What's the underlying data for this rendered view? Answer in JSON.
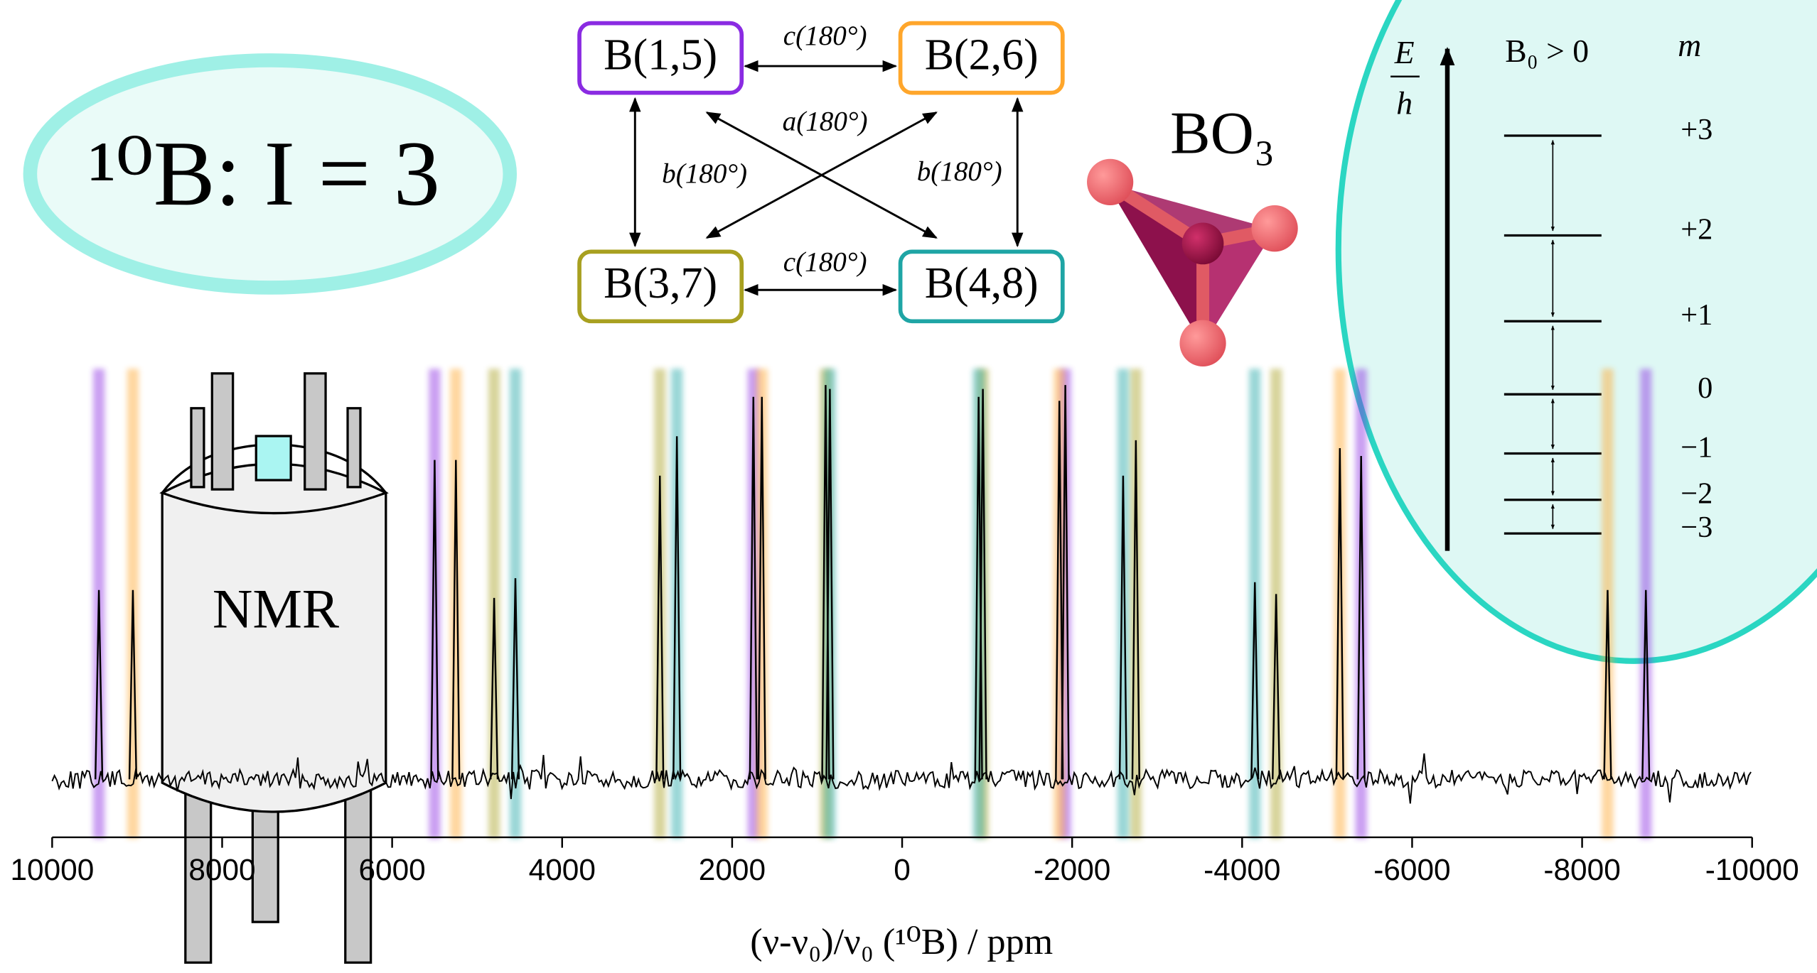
{
  "chart_data": {
    "type": "spectrum",
    "xlabel": "(ν-ν₀)/ν₀ (¹⁰B) / ppm",
    "xlim": [
      10000,
      -10000
    ],
    "xticks": [
      10000,
      8000,
      6000,
      4000,
      2000,
      0,
      -2000,
      -4000,
      -6000,
      -8000,
      -10000
    ],
    "series": [
      {
        "name": "B(1,5)",
        "color": "#8a2be2",
        "x": [
          9450,
          5500,
          1750,
          -1920,
          -5400,
          -8750
        ],
        "values": [
          0.48,
          0.81,
          0.97,
          1.0,
          0.82,
          0.48
        ]
      },
      {
        "name": "B(2,6)",
        "color": "#ffa62b",
        "x": [
          9050,
          5250,
          1650,
          -1850,
          -5150,
          -8300
        ],
        "values": [
          0.48,
          0.81,
          0.97,
          0.96,
          0.84,
          0.48
        ]
      },
      {
        "name": "B(3,7)",
        "color": "#a8a020",
        "x": [
          4800,
          2850,
          900,
          -950,
          -2750,
          -4400
        ],
        "values": [
          0.46,
          0.77,
          1.0,
          0.99,
          0.86,
          0.47
        ]
      },
      {
        "name": "B(4,8)",
        "color": "#1fa5a5",
        "x": [
          4550,
          2650,
          850,
          -900,
          -2600,
          -4150
        ],
        "values": [
          0.51,
          0.87,
          0.99,
          0.97,
          0.77,
          0.5
        ]
      }
    ]
  },
  "diagram": {
    "isotope": "¹⁰B: I = 3",
    "edges": {
      "top": "c(180°)",
      "bottom": "c(180°)",
      "left": "b(180°)",
      "right": "b(180°)",
      "diagonal": "a(180°)"
    },
    "molecule": "BO₃",
    "instrument": "NMR",
    "energy": {
      "numerator": "E",
      "denominator": "h",
      "field": "B₀ > 0",
      "header": "m",
      "levels": [
        "+3",
        "+2",
        "+1",
        "0",
        "−1",
        "−2",
        "−3"
      ]
    }
  }
}
